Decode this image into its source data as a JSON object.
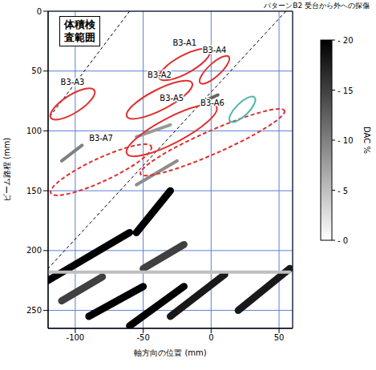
{
  "chart_data": {
    "type": "heatmap",
    "title": "パターンB2 受台から外への探傷",
    "annotation": "体積検査範囲",
    "x_label": "軸方向の位置 (mm)",
    "y_label": "ビーム路程 (mm)",
    "xlim": [
      -120,
      60
    ],
    "xticks": [
      -100,
      -50,
      0,
      50
    ],
    "ylim": [
      0,
      265
    ],
    "yticks": [
      0,
      50,
      100,
      150,
      200,
      250
    ],
    "grid": true,
    "colorbar": {
      "label": "DAC %",
      "range": [
        0,
        20
      ],
      "ticks": [
        0,
        5,
        10,
        15,
        20
      ]
    },
    "boundaries": [
      {
        "x1": -60,
        "y1": 0,
        "x2": -120,
        "y2": 90,
        "line_style": "dashed",
        "color": "#000000"
      },
      {
        "x1": 55,
        "y1": 0,
        "x2": -120,
        "y2": 215,
        "line_style": "dashed",
        "color": "#000000"
      }
    ],
    "indications": [
      {
        "x1": -55,
        "y1": 185,
        "x2": -30,
        "y2": 150,
        "value": 20
      },
      {
        "x1": -120,
        "y1": 225,
        "x2": -60,
        "y2": 185,
        "value": 20
      },
      {
        "x1": -90,
        "y1": 255,
        "x2": -50,
        "y2": 230,
        "value": 20
      },
      {
        "x1": -60,
        "y1": 263,
        "x2": -20,
        "y2": 230,
        "value": 20
      },
      {
        "x1": -30,
        "y1": 255,
        "x2": 10,
        "y2": 220,
        "value": 18
      },
      {
        "x1": 20,
        "y1": 250,
        "x2": 58,
        "y2": 215,
        "value": 18
      },
      {
        "x1": -110,
        "y1": 242,
        "x2": -80,
        "y2": 222,
        "value": 15
      },
      {
        "x1": -50,
        "y1": 215,
        "x2": -20,
        "y2": 195,
        "value": 15
      },
      {
        "x1": -120,
        "y1": 218,
        "x2": 58,
        "y2": 218,
        "value": 5
      },
      {
        "x1": -5,
        "y1": 75,
        "x2": 5,
        "y2": 70,
        "value": 12
      },
      {
        "x1": -55,
        "y1": 105,
        "x2": -30,
        "y2": 95,
        "value": 8
      },
      {
        "x1": -110,
        "y1": 125,
        "x2": -95,
        "y2": 112,
        "value": 10
      },
      {
        "x1": -55,
        "y1": 145,
        "x2": -25,
        "y2": 125,
        "value": 9
      }
    ],
    "regions": [
      {
        "label": "B3-A1",
        "x1": -38,
        "y1": 56,
        "x2": -1,
        "y2": 33,
        "width": 14,
        "color": "#e03030",
        "line_style": "solid"
      },
      {
        "label": "B3-A2",
        "x1": -62,
        "y1": 88,
        "x2": -14,
        "y2": 60,
        "width": 16,
        "color": "#e03030",
        "line_style": "solid"
      },
      {
        "label": "B3-A3",
        "x1": -118,
        "y1": 89,
        "x2": -86,
        "y2": 66,
        "width": 14,
        "color": "#e03030",
        "line_style": "solid"
      },
      {
        "label": "B3-A4",
        "x1": -8,
        "y1": 60,
        "x2": 13,
        "y2": 38,
        "width": 10,
        "color": "#e03030",
        "line_style": "solid"
      },
      {
        "label": "B3-A5",
        "x1": -62,
        "y1": 119,
        "x2": 4,
        "y2": 80,
        "width": 20,
        "color": "#e03030",
        "line_style": "solid"
      },
      {
        "label": "B3-A6",
        "x1": -52,
        "y1": 136,
        "x2": 54,
        "y2": 83,
        "width": 18,
        "color": "#e03030",
        "line_style": "dashed"
      },
      {
        "label": "B3-A7",
        "x1": -118,
        "y1": 152,
        "x2": -44,
        "y2": 113,
        "width": 18,
        "color": "#e03030",
        "line_style": "dashed"
      },
      {
        "x1": 14,
        "y1": 92,
        "x2": 32,
        "y2": 72,
        "width": 10,
        "color": "#4db6ac",
        "line_style": "solid"
      }
    ]
  }
}
